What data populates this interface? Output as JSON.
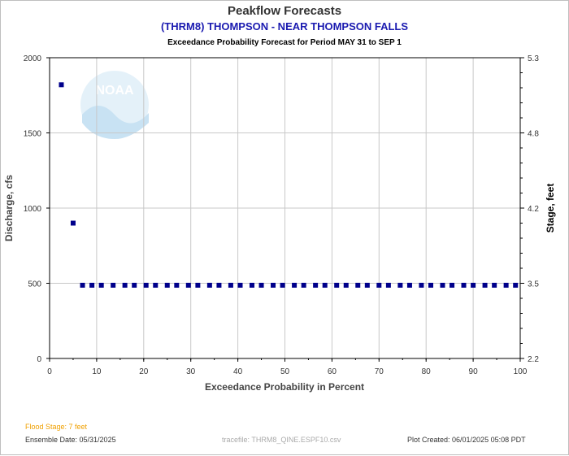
{
  "header": {
    "title": "Peakflow Forecasts",
    "subtitle": "(THRM8) THOMPSON - NEAR THOMPSON FALLS",
    "period": "Exceedance Probability Forecast for Period MAY 31 to SEP 1"
  },
  "colors": {
    "title": "#333333",
    "subtitle": "#1a1ab0",
    "points": "#00008b",
    "grid": "#c8c8c8",
    "flood_stage": "#f0a000"
  },
  "chart_data": {
    "type": "scatter",
    "xlabel": "Exceedance Probability in Percent",
    "ylabel": "Discharge, cfs",
    "y2label": "Stage, feet",
    "xlim": [
      0,
      100
    ],
    "ylim": [
      0,
      2000
    ],
    "xticks": [
      "0",
      "10",
      "20",
      "30",
      "40",
      "50",
      "60",
      "70",
      "80",
      "90",
      "100"
    ],
    "yticks": [
      "0",
      "500",
      "1000",
      "1500",
      "2000"
    ],
    "y2ticks": [
      "2.2",
      "3.5",
      "4.2",
      "4.8",
      "5.3"
    ],
    "grid": true,
    "x": [
      2.5,
      5,
      7,
      9,
      11,
      13.5,
      16,
      18,
      20.5,
      22.5,
      25,
      27,
      29.5,
      31.5,
      34,
      36,
      38.5,
      40.5,
      43,
      45,
      47.5,
      49.5,
      52,
      54,
      56.5,
      58.5,
      61,
      63,
      65.5,
      67.5,
      70,
      72,
      74.5,
      76.5,
      79,
      81,
      83.5,
      85.5,
      88,
      90,
      92.5,
      94.5,
      97,
      99
    ],
    "y": [
      1820,
      900,
      487,
      487,
      487,
      487,
      487,
      487,
      487,
      487,
      487,
      487,
      487,
      487,
      487,
      487,
      487,
      487,
      487,
      487,
      487,
      487,
      487,
      487,
      487,
      487,
      487,
      487,
      487,
      487,
      487,
      487,
      487,
      487,
      487,
      487,
      487,
      487,
      487,
      487,
      487,
      487,
      487,
      487
    ]
  },
  "footer": {
    "flood_stage": "Flood Stage: 7 feet",
    "ensemble_date": "Ensemble Date: 05/31/2025",
    "tracefile": "tracefile: THRM8_QINE.ESPF10.csv",
    "plot_created": "Plot Created: 06/01/2025 05:08 PDT"
  },
  "logo": {
    "text": "NOAA"
  }
}
